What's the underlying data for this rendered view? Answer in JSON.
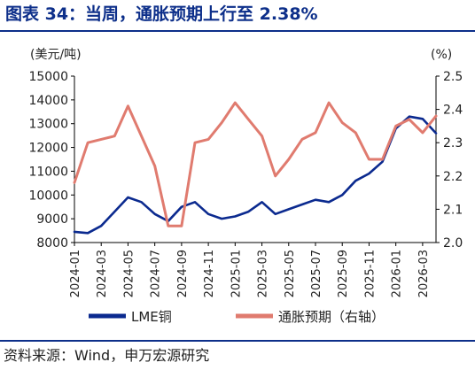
{
  "title": "图表 34：当周，通胀预期上行至 2.38%",
  "source": "资料来源：Wind，申万宏源研究",
  "colors": {
    "title": "#0d2f8a",
    "copper": "#0b2a8f",
    "inflation": "#e07b6f"
  },
  "chart_data": {
    "type": "line",
    "y_left_unit": "(美元/吨)",
    "y_right_unit": "(%)",
    "y_left_ticks": [
      "15000",
      "14000",
      "13000",
      "12000",
      "11000",
      "10000",
      "9000",
      "8000"
    ],
    "y_right_ticks": [
      "2.5",
      "2.4",
      "2.3",
      "2.2",
      "2.1",
      "2.0"
    ],
    "y_left_range": [
      8000,
      15000
    ],
    "y_right_range": [
      2.0,
      2.5
    ],
    "x_ticks": [
      "2024-01",
      "2024-03",
      "2024-05",
      "2024-07",
      "2024-09",
      "2024-11",
      "2025-01",
      "2025-03",
      "2025-05",
      "2025-07",
      "2025-09",
      "2025-11",
      "2026-01",
      "2026-03"
    ],
    "x_range": [
      "2024-01",
      "2026-04"
    ],
    "legend_position": "bottom",
    "series": [
      {
        "name": "LME铜",
        "axis": "left",
        "x": [
          "2024-01",
          "2024-02",
          "2024-03",
          "2024-04",
          "2024-05",
          "2024-06",
          "2024-07",
          "2024-08",
          "2024-09",
          "2024-10",
          "2024-11",
          "2024-12",
          "2025-01",
          "2025-02",
          "2025-03",
          "2025-04",
          "2025-05",
          "2025-06",
          "2025-07",
          "2025-08",
          "2025-09",
          "2025-10",
          "2025-11",
          "2025-12",
          "2026-01",
          "2026-02",
          "2026-03",
          "2026-04"
        ],
        "y": [
          8450,
          8400,
          8700,
          9300,
          9900,
          9700,
          9200,
          8900,
          9500,
          9700,
          9200,
          9000,
          9100,
          9300,
          9700,
          9200,
          9400,
          9600,
          9800,
          9700,
          10000,
          10600,
          10900,
          11400,
          12800,
          13300,
          13200,
          12600
        ]
      },
      {
        "name": "通胀预期（右轴）",
        "axis": "right",
        "x": [
          "2024-01",
          "2024-02",
          "2024-03",
          "2024-04",
          "2024-05",
          "2024-06",
          "2024-07",
          "2024-08",
          "2024-09",
          "2024-10",
          "2024-11",
          "2024-12",
          "2025-01",
          "2025-02",
          "2025-03",
          "2025-04",
          "2025-05",
          "2025-06",
          "2025-07",
          "2025-08",
          "2025-09",
          "2025-10",
          "2025-11",
          "2025-12",
          "2026-01",
          "2026-02",
          "2026-03",
          "2026-04"
        ],
        "y": [
          2.18,
          2.3,
          2.31,
          2.32,
          2.41,
          2.32,
          2.23,
          2.05,
          2.05,
          2.3,
          2.31,
          2.36,
          2.42,
          2.37,
          2.32,
          2.2,
          2.25,
          2.31,
          2.33,
          2.42,
          2.36,
          2.33,
          2.25,
          2.25,
          2.35,
          2.37,
          2.33,
          2.38
        ]
      }
    ]
  }
}
